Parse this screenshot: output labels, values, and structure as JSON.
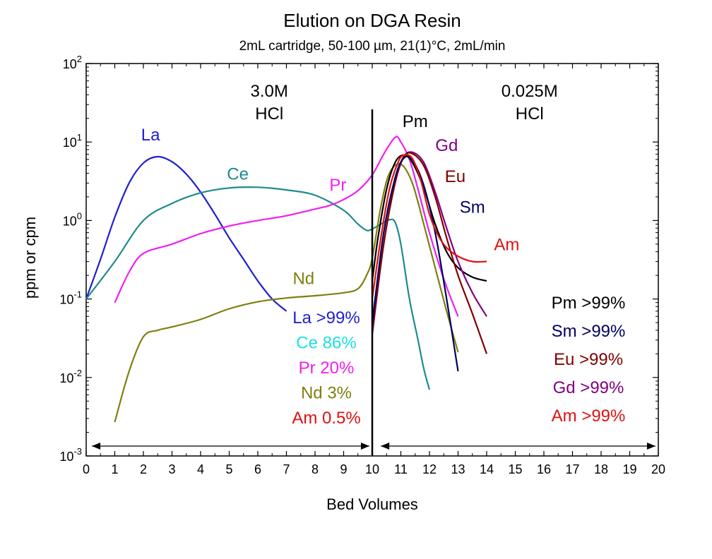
{
  "chart_data": {
    "type": "line",
    "title": "Elution on DGA Resin",
    "subtitle": "2mL cartridge, 50-100 µm, 21(1)°C, 2mL/min",
    "xlabel": "Bed Volumes",
    "ylabel": "ppm or cpm",
    "xlim": [
      0,
      20
    ],
    "ylim": [
      0.001,
      100
    ],
    "yscale": "log",
    "x_ticks": [
      "0",
      "1",
      "2",
      "3",
      "4",
      "5",
      "6",
      "7",
      "8",
      "9",
      "10",
      "11",
      "12",
      "13",
      "14",
      "15",
      "16",
      "17",
      "18",
      "19",
      "20"
    ],
    "y_ticks": [
      {
        "value": 0.001,
        "base": "10",
        "exp": "-3"
      },
      {
        "value": 0.01,
        "base": "10",
        "exp": "-2"
      },
      {
        "value": 0.1,
        "base": "10",
        "exp": "-1"
      },
      {
        "value": 1,
        "base": "10",
        "exp": "0"
      },
      {
        "value": 10,
        "base": "10",
        "exp": "1"
      },
      {
        "value": 100,
        "base": "10",
        "exp": "2"
      }
    ],
    "divider_x": 10,
    "regions": [
      {
        "line1": "3.0M",
        "line2": "HCl",
        "x_center": 6.4
      },
      {
        "line1": "0.025M",
        "line2": "HCl",
        "x_center": 15.5
      }
    ],
    "arrows": [
      {
        "from": 0.2,
        "to": 9.9
      },
      {
        "from": 10.3,
        "to": 19.9
      }
    ],
    "series": [
      {
        "name": "La",
        "color": "#1f1fd0",
        "label_at": [
          2.25,
          10.5
        ],
        "label_color": "#1f1fd0",
        "x": [
          0,
          0.5,
          1,
          1.5,
          2,
          2.5,
          3,
          3.5,
          4,
          4.5,
          5,
          5.5,
          6,
          6.5,
          7
        ],
        "y": [
          0.1,
          0.32,
          1.1,
          3.0,
          5.4,
          6.5,
          5.6,
          3.9,
          2.3,
          1.2,
          0.6,
          0.32,
          0.17,
          0.1,
          0.07
        ]
      },
      {
        "name": "Ce",
        "color": "#1f8a8a",
        "label_at": [
          5.3,
          3.3
        ],
        "label_color": "#1f8a8a",
        "x": [
          0,
          1,
          2,
          3,
          4,
          5,
          6,
          7,
          8,
          9,
          9.5,
          9.8,
          10,
          10.3,
          10.6,
          10.8,
          11,
          11.3,
          11.6,
          11.8,
          12
        ],
        "y": [
          0.1,
          0.3,
          1.0,
          1.65,
          2.25,
          2.6,
          2.65,
          2.45,
          2.1,
          1.35,
          0.9,
          0.75,
          0.78,
          0.9,
          1.02,
          0.95,
          0.5,
          0.1,
          0.03,
          0.013,
          0.007
        ]
      },
      {
        "name": "Pr",
        "color": "#f01ef0",
        "label_at": [
          8.8,
          2.4
        ],
        "label_color": "#f01ef0",
        "x": [
          1,
          1.5,
          2,
          3,
          4,
          5,
          6,
          7,
          8,
          8.5,
          9,
          9.5,
          10,
          10.4,
          10.8,
          11,
          11.3,
          11.6,
          12,
          12.5,
          13
        ],
        "y": [
          0.09,
          0.22,
          0.38,
          0.5,
          0.68,
          0.85,
          1.0,
          1.15,
          1.4,
          1.55,
          1.85,
          2.4,
          3.8,
          7.0,
          11.5,
          10.0,
          6.0,
          2.5,
          0.7,
          0.18,
          0.06
        ]
      },
      {
        "name": "Nd",
        "color": "#7f7f10",
        "label_at": [
          7.6,
          0.155
        ],
        "label_color": "#7f7f10",
        "x": [
          1,
          1.5,
          2,
          2.5,
          3,
          4,
          5,
          6,
          7,
          8,
          9,
          9.5,
          9.8,
          10,
          10.3,
          10.6,
          11,
          11.4,
          11.8,
          12.2,
          12.6,
          13
        ],
        "y": [
          0.0027,
          0.012,
          0.033,
          0.04,
          0.044,
          0.055,
          0.075,
          0.092,
          0.103,
          0.11,
          0.12,
          0.135,
          0.2,
          0.33,
          1.5,
          4.0,
          5.2,
          3.0,
          0.9,
          0.25,
          0.07,
          0.021
        ]
      },
      {
        "name": "Pm",
        "color": "#000000",
        "label_at": [
          11.5,
          15.5
        ],
        "label_color": "#000000",
        "x": [
          10,
          10.2,
          10.5,
          10.8,
          11.1,
          11.4,
          11.8,
          12.2,
          12.6,
          13,
          13.5,
          14
        ],
        "y": [
          0.17,
          0.6,
          2.5,
          5.5,
          6.8,
          5.5,
          2.6,
          0.9,
          0.4,
          0.25,
          0.19,
          0.17
        ]
      },
      {
        "name": "Gd",
        "color": "#800080",
        "label_at": [
          12.6,
          7.7
        ],
        "label_color": "#800080",
        "x": [
          10,
          10.4,
          10.8,
          11.1,
          11.4,
          11.8,
          12.2,
          12.6,
          13,
          13.5,
          14
        ],
        "y": [
          0.035,
          0.5,
          3.0,
          6.4,
          7.4,
          5.5,
          2.3,
          0.8,
          0.3,
          0.12,
          0.06
        ]
      },
      {
        "name": "Eu",
        "color": "#800000",
        "label_at": [
          12.9,
          3.1
        ],
        "label_color": "#800000",
        "x": [
          10,
          10.4,
          10.8,
          11.1,
          11.4,
          11.8,
          12.2,
          12.6,
          13,
          13.5,
          14
        ],
        "y": [
          0.04,
          0.5,
          3.1,
          6.5,
          7.1,
          5.0,
          2.0,
          0.6,
          0.2,
          0.065,
          0.02
        ]
      },
      {
        "name": "Sm",
        "color": "#000060",
        "label_at": [
          13.5,
          1.25
        ],
        "label_color": "#000060",
        "x": [
          10,
          10.4,
          10.8,
          11.1,
          11.4,
          11.8,
          12.2,
          12.6,
          13
        ],
        "y": [
          0.05,
          0.7,
          3.5,
          6.2,
          5.9,
          2.8,
          0.7,
          0.1,
          0.012
        ]
      },
      {
        "name": "Am",
        "color": "#e01010",
        "label_at": [
          14.7,
          0.42
        ],
        "label_color": "#e01010",
        "x": [
          10,
          10.3,
          10.6,
          10.9,
          11.1,
          11.4,
          11.7,
          12,
          12.3,
          12.6,
          13,
          13.5,
          14
        ],
        "y": [
          0.1,
          0.6,
          2.5,
          5.5,
          6.8,
          6.2,
          3.2,
          1.2,
          0.65,
          0.45,
          0.35,
          0.3,
          0.3
        ]
      }
    ],
    "recovery_left": [
      {
        "text": "La >99%",
        "color": "#1f1fd0"
      },
      {
        "text": "Ce 86%",
        "color": "#1ee0e0"
      },
      {
        "text": "Pr 20%",
        "color": "#f01ef0"
      },
      {
        "text": "Nd 3%",
        "color": "#7f7f10"
      },
      {
        "text": "Am 0.5%",
        "color": "#e01010"
      }
    ],
    "recovery_right": [
      {
        "text": "Pm >99%",
        "color": "#000000"
      },
      {
        "text": "Sm >99%",
        "color": "#000060"
      },
      {
        "text": "Eu >99%",
        "color": "#800000"
      },
      {
        "text": "Gd >99%",
        "color": "#800080"
      },
      {
        "text": "Am >99%",
        "color": "#e01010"
      }
    ]
  }
}
